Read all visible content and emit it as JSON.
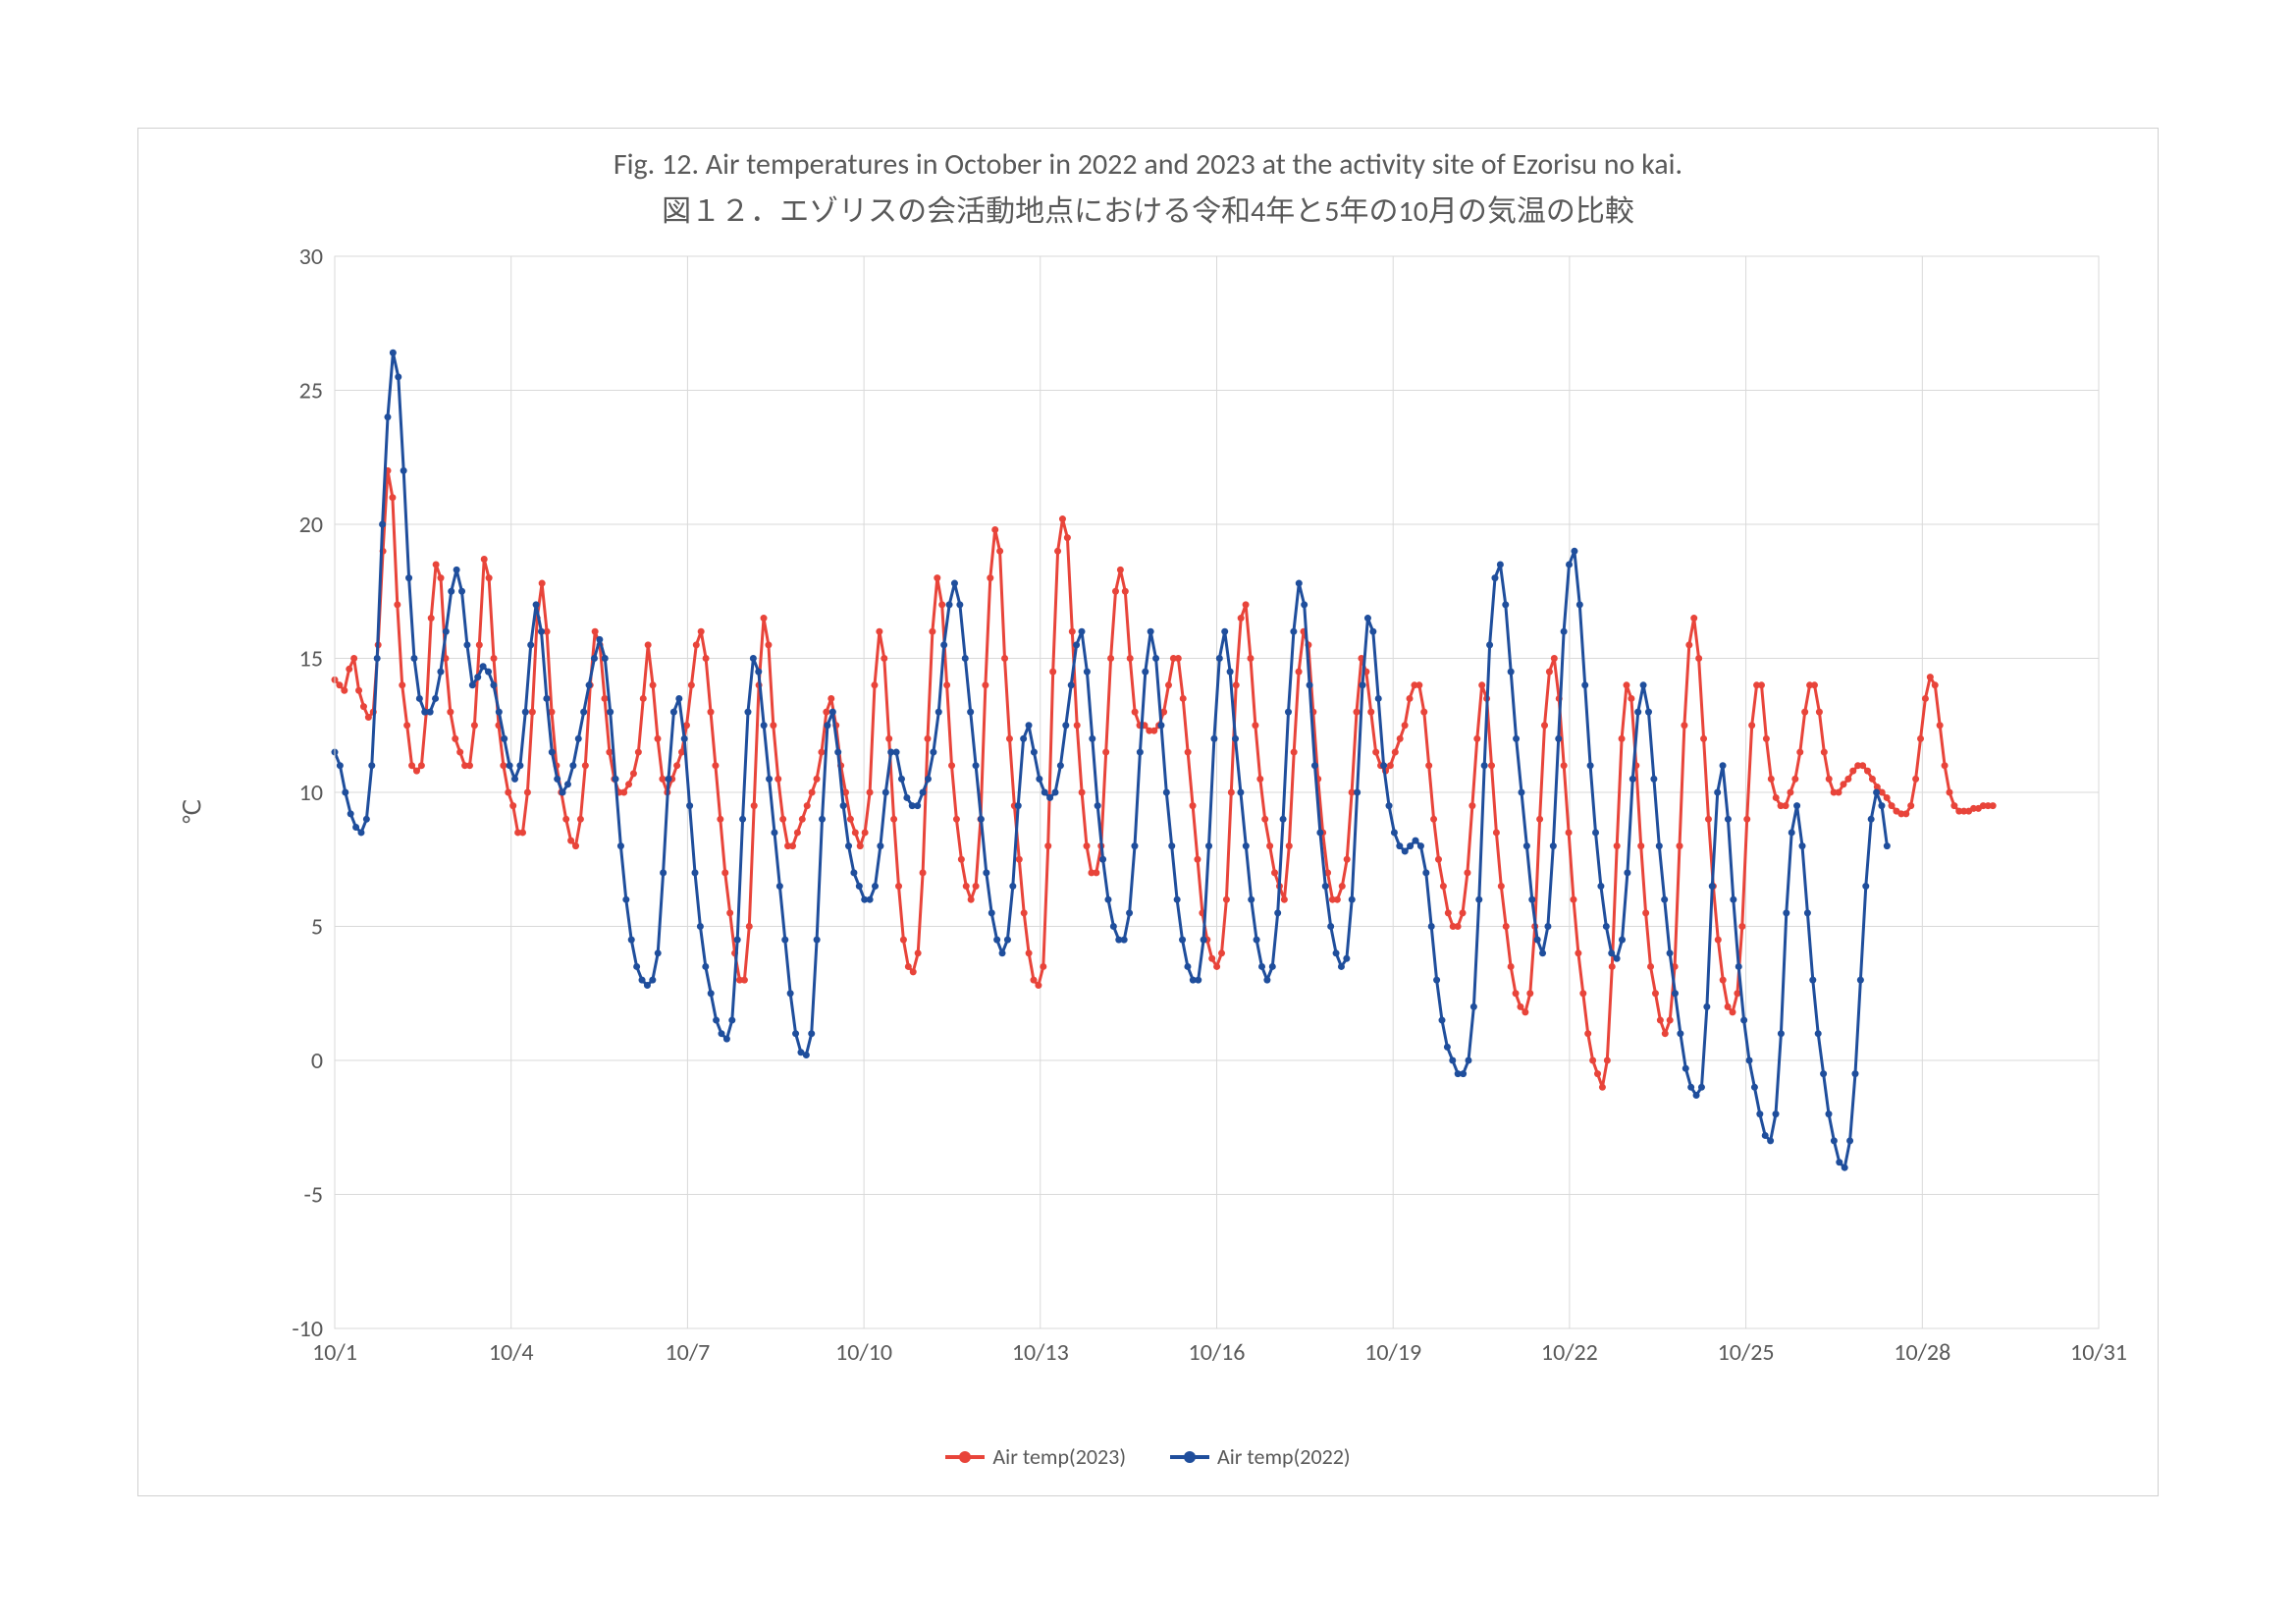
{
  "chart": {
    "type": "line",
    "title_en": "Fig. 12.  Air temperatures in October in 2022 and 2023 at the activity site of Ezorisu no kai.",
    "title_jp": "図１２．エゾリスの会活動地点における令和4年と5年の10月の気温の比較",
    "title_fontsize": 30,
    "ylabel": "℃",
    "label_fontsize": 24,
    "background_color": "#ffffff",
    "grid_color": "#d9d9d9",
    "border_color": "#d0d0d0",
    "text_color": "#595959",
    "xlim": [
      1,
      31
    ],
    "x_tick_step": 3,
    "x_tick_labels": [
      "10/1",
      "10/4",
      "10/7",
      "10/10",
      "10/13",
      "10/16",
      "10/19",
      "10/22",
      "10/25",
      "10/28",
      "10/31"
    ],
    "ylim": [
      -10,
      30
    ],
    "y_tick_step": 5,
    "y_tick_labels": [
      "-10",
      "-5",
      "0",
      "5",
      "10",
      "15",
      "20",
      "25",
      "30"
    ],
    "line_width": 3,
    "marker_style": "circle",
    "marker_radius": 3.5,
    "legend_position": "bottom",
    "series": [
      {
        "name": "Air temp(2023)",
        "color": "#e8443a",
        "x_end": 29.2,
        "values": [
          14.2,
          14.0,
          13.8,
          14.6,
          15.0,
          13.8,
          13.2,
          12.8,
          13.0,
          15.5,
          19.0,
          22.0,
          21.0,
          17.0,
          14.0,
          12.5,
          11.0,
          10.8,
          11.0,
          13.0,
          16.5,
          18.5,
          18.0,
          15.0,
          13.0,
          12.0,
          11.5,
          11.0,
          11.0,
          12.5,
          15.5,
          18.7,
          18.0,
          15.0,
          12.5,
          11.0,
          10.0,
          9.5,
          8.5,
          8.5,
          10.0,
          13.0,
          16.5,
          17.8,
          16.0,
          13.0,
          11.0,
          10.0,
          9.0,
          8.2,
          8.0,
          9.0,
          11.0,
          14.0,
          16.0,
          15.5,
          13.5,
          11.5,
          10.5,
          10.0,
          10.0,
          10.3,
          10.7,
          11.5,
          13.5,
          15.5,
          14.0,
          12.0,
          10.5,
          10.0,
          10.5,
          11.0,
          11.5,
          12.5,
          14.0,
          15.5,
          16.0,
          15.0,
          13.0,
          11.0,
          9.0,
          7.0,
          5.5,
          4.0,
          3.0,
          3.0,
          5.0,
          9.5,
          14.0,
          16.5,
          15.5,
          12.5,
          10.5,
          9.0,
          8.0,
          8.0,
          8.5,
          9.0,
          9.5,
          10.0,
          10.5,
          11.5,
          13.0,
          13.5,
          12.5,
          11.0,
          10.0,
          9.0,
          8.5,
          8.0,
          8.5,
          10.0,
          14.0,
          16.0,
          15.0,
          12.0,
          9.0,
          6.5,
          4.5,
          3.5,
          3.3,
          4.0,
          7.0,
          12.0,
          16.0,
          18.0,
          17.0,
          14.0,
          11.0,
          9.0,
          7.5,
          6.5,
          6.0,
          6.5,
          9.0,
          14.0,
          18.0,
          19.8,
          19.0,
          15.0,
          12.0,
          9.5,
          7.5,
          5.5,
          4.0,
          3.0,
          2.8,
          3.5,
          8.0,
          14.5,
          19.0,
          20.2,
          19.5,
          16.0,
          12.5,
          10.0,
          8.0,
          7.0,
          7.0,
          8.0,
          11.5,
          15.0,
          17.5,
          18.3,
          17.5,
          15.0,
          13.0,
          12.5,
          12.5,
          12.3,
          12.3,
          12.5,
          13.0,
          14.0,
          15.0,
          15.0,
          13.5,
          11.5,
          9.5,
          7.5,
          5.5,
          4.5,
          3.8,
          3.5,
          4.0,
          6.0,
          10.0,
          14.0,
          16.5,
          17.0,
          15.0,
          12.5,
          10.5,
          9.0,
          8.0,
          7.0,
          6.5,
          6.0,
          8.0,
          11.5,
          14.5,
          16.0,
          15.5,
          13.0,
          10.5,
          8.5,
          7.0,
          6.0,
          6.0,
          6.5,
          7.5,
          10.0,
          13.0,
          15.0,
          14.5,
          13.0,
          11.5,
          11.0,
          10.8,
          11.0,
          11.5,
          12.0,
          12.5,
          13.5,
          14.0,
          14.0,
          13.0,
          11.0,
          9.0,
          7.5,
          6.5,
          5.5,
          5.0,
          5.0,
          5.5,
          7.0,
          9.5,
          12.0,
          14.0,
          13.5,
          11.0,
          8.5,
          6.5,
          5.0,
          3.5,
          2.5,
          2.0,
          1.8,
          2.5,
          5.0,
          9.0,
          12.5,
          14.5,
          15.0,
          13.5,
          11.0,
          8.5,
          6.0,
          4.0,
          2.5,
          1.0,
          0.0,
          -0.5,
          -1.0,
          0.0,
          3.5,
          8.0,
          12.0,
          14.0,
          13.5,
          11.0,
          8.0,
          5.5,
          3.5,
          2.5,
          1.5,
          1.0,
          1.5,
          3.5,
          8.0,
          12.5,
          15.5,
          16.5,
          15.0,
          12.0,
          9.0,
          6.5,
          4.5,
          3.0,
          2.0,
          1.8,
          2.5,
          5.0,
          9.0,
          12.5,
          14.0,
          14.0,
          12.0,
          10.5,
          9.8,
          9.5,
          9.5,
          10.0,
          10.5,
          11.5,
          13.0,
          14.0,
          14.0,
          13.0,
          11.5,
          10.5,
          10.0,
          10.0,
          10.3,
          10.5,
          10.8,
          11.0,
          11.0,
          10.8,
          10.5,
          10.2,
          10.0,
          9.8,
          9.5,
          9.3,
          9.2,
          9.2,
          9.5,
          10.5,
          12.0,
          13.5,
          14.3,
          14.0,
          12.5,
          11.0,
          10.0,
          9.5,
          9.3,
          9.3,
          9.3,
          9.4,
          9.4,
          9.5,
          9.5,
          9.5
        ]
      },
      {
        "name": "Air temp(2022)",
        "color": "#1f4e9c",
        "x_end": 27.4,
        "values": [
          11.5,
          11.0,
          10.0,
          9.2,
          8.7,
          8.5,
          9.0,
          11.0,
          15.0,
          20.0,
          24.0,
          26.4,
          25.5,
          22.0,
          18.0,
          15.0,
          13.5,
          13.0,
          13.0,
          13.5,
          14.5,
          16.0,
          17.5,
          18.3,
          17.5,
          15.5,
          14.0,
          14.3,
          14.7,
          14.5,
          14.0,
          13.0,
          12.0,
          11.0,
          10.5,
          11.0,
          13.0,
          15.5,
          17.0,
          16.0,
          13.5,
          11.5,
          10.5,
          10.0,
          10.3,
          11.0,
          12.0,
          13.0,
          14.0,
          15.0,
          15.7,
          15.0,
          13.0,
          10.5,
          8.0,
          6.0,
          4.5,
          3.5,
          3.0,
          2.8,
          3.0,
          4.0,
          7.0,
          10.5,
          13.0,
          13.5,
          12.0,
          9.5,
          7.0,
          5.0,
          3.5,
          2.5,
          1.5,
          1.0,
          0.8,
          1.5,
          4.5,
          9.0,
          13.0,
          15.0,
          14.5,
          12.5,
          10.5,
          8.5,
          6.5,
          4.5,
          2.5,
          1.0,
          0.3,
          0.2,
          1.0,
          4.5,
          9.0,
          12.5,
          13.0,
          11.5,
          9.5,
          8.0,
          7.0,
          6.5,
          6.0,
          6.0,
          6.5,
          8.0,
          10.0,
          11.5,
          11.5,
          10.5,
          9.8,
          9.5,
          9.5,
          10.0,
          10.5,
          11.5,
          13.0,
          15.5,
          17.0,
          17.8,
          17.0,
          15.0,
          13.0,
          11.0,
          9.0,
          7.0,
          5.5,
          4.5,
          4.0,
          4.5,
          6.5,
          9.5,
          12.0,
          12.5,
          11.5,
          10.5,
          10.0,
          9.8,
          10.0,
          11.0,
          12.5,
          14.0,
          15.5,
          16.0,
          14.5,
          12.0,
          9.5,
          7.5,
          6.0,
          5.0,
          4.5,
          4.5,
          5.5,
          8.0,
          11.5,
          14.5,
          16.0,
          15.0,
          12.5,
          10.0,
          8.0,
          6.0,
          4.5,
          3.5,
          3.0,
          3.0,
          4.5,
          8.0,
          12.0,
          15.0,
          16.0,
          14.5,
          12.0,
          10.0,
          8.0,
          6.0,
          4.5,
          3.5,
          3.0,
          3.5,
          5.5,
          9.0,
          13.0,
          16.0,
          17.8,
          17.0,
          14.0,
          11.0,
          8.5,
          6.5,
          5.0,
          4.0,
          3.5,
          3.8,
          6.0,
          10.0,
          14.0,
          16.5,
          16.0,
          13.5,
          11.0,
          9.5,
          8.5,
          8.0,
          7.8,
          8.0,
          8.2,
          8.0,
          7.0,
          5.0,
          3.0,
          1.5,
          0.5,
          0.0,
          -0.5,
          -0.5,
          0.0,
          2.0,
          6.0,
          11.0,
          15.5,
          18.0,
          18.5,
          17.0,
          14.5,
          12.0,
          10.0,
          8.0,
          6.0,
          4.5,
          4.0,
          5.0,
          8.0,
          12.0,
          16.0,
          18.5,
          19.0,
          17.0,
          14.0,
          11.0,
          8.5,
          6.5,
          5.0,
          4.0,
          3.8,
          4.5,
          7.0,
          10.5,
          13.0,
          14.0,
          13.0,
          10.5,
          8.0,
          6.0,
          4.0,
          2.5,
          1.0,
          -0.3,
          -1.0,
          -1.3,
          -1.0,
          2.0,
          6.5,
          10.0,
          11.0,
          9.0,
          6.0,
          3.5,
          1.5,
          0.0,
          -1.0,
          -2.0,
          -2.8,
          -3.0,
          -2.0,
          1.0,
          5.5,
          8.5,
          9.5,
          8.0,
          5.5,
          3.0,
          1.0,
          -0.5,
          -2.0,
          -3.0,
          -3.8,
          -4.0,
          -3.0,
          -0.5,
          3.0,
          6.5,
          9.0,
          10.0,
          9.5,
          8.0
        ]
      }
    ]
  },
  "legend": {
    "items": [
      {
        "label": "Air temp(2023)",
        "color": "#e8443a"
      },
      {
        "label": "Air temp(2022)",
        "color": "#1f4e9c"
      }
    ]
  }
}
